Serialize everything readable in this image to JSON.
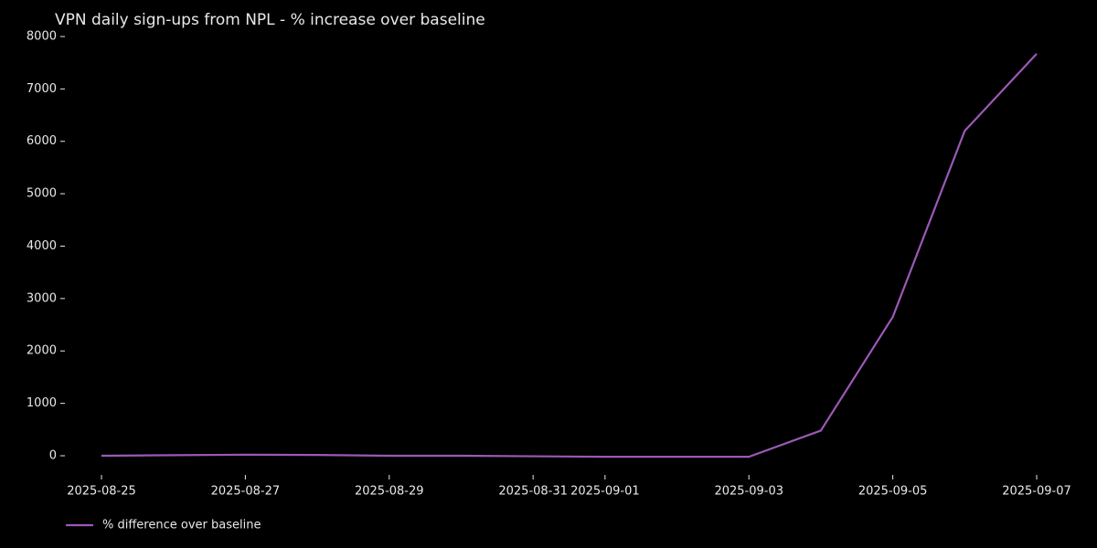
{
  "chart_data": {
    "type": "line",
    "title": "VPN daily sign-ups from NPL - % increase over baseline",
    "x": [
      "2025-08-25",
      "2025-08-26",
      "2025-08-27",
      "2025-08-28",
      "2025-08-29",
      "2025-08-30",
      "2025-08-31",
      "2025-09-01",
      "2025-09-02",
      "2025-09-03",
      "2025-09-04",
      "2025-09-05",
      "2025-09-06",
      "2025-09-07"
    ],
    "series": [
      {
        "name": "% difference over baseline",
        "color": "#9b59b6",
        "values": [
          0,
          10,
          20,
          15,
          0,
          0,
          -10,
          -20,
          -20,
          -20,
          480,
          2650,
          6200,
          7670
        ]
      }
    ],
    "xticks": [
      "2025-08-25",
      "2025-08-27",
      "2025-08-29",
      "2025-08-31",
      "2025-09-01",
      "2025-09-03",
      "2025-09-05",
      "2025-09-07"
    ],
    "ylim": [
      -300,
      8000
    ],
    "yticks": [
      0,
      1000,
      2000,
      3000,
      4000,
      5000,
      6000,
      7000,
      8000
    ],
    "grid": false,
    "legend": "bottom-left"
  }
}
